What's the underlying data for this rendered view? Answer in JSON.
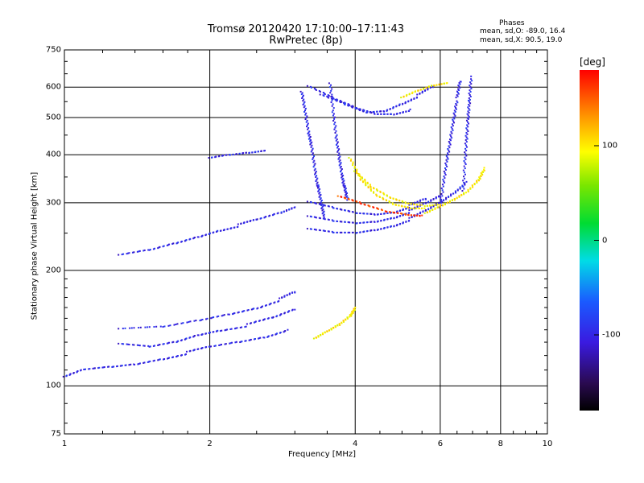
{
  "title": "Tromsø 20120420 17:10:00–17:11:43",
  "subtitle": "RwPretec (8p)",
  "stats": {
    "heading": "Phases",
    "o_mode": "mean, sd,O: -89.0, 16.4",
    "x_mode": "mean, sd,X:  90.5, 19.0"
  },
  "colorbar": {
    "unit": "[deg]",
    "tick_labels": [
      "100",
      "0",
      "-100"
    ],
    "tick_values": [
      100,
      0,
      -100
    ],
    "range": [
      -180,
      180
    ]
  },
  "chart_data": {
    "type": "scatter",
    "xlabel": "Frequency [MHz]",
    "ylabel": "Stationary phase Virtual Height [km]",
    "xscale": "log",
    "yscale": "log",
    "xlim": [
      1,
      10
    ],
    "ylim": [
      75,
      750
    ],
    "grid": true,
    "x_ticks": [
      1,
      2,
      4,
      6,
      8,
      10
    ],
    "x_tick_labels": [
      "1",
      "2",
      "4",
      "6",
      "8",
      "10"
    ],
    "y_ticks": [
      75,
      100,
      200,
      300,
      400,
      500,
      600,
      750
    ],
    "y_tick_labels": [
      "75",
      "100",
      "200",
      "300",
      "400",
      "500",
      "600",
      "750"
    ],
    "traces": [
      {
        "phase": -100,
        "points": [
          [
            1.0,
            105
          ],
          [
            1.1,
            110
          ],
          [
            1.25,
            112
          ],
          [
            1.4,
            114
          ],
          [
            1.6,
            118
          ],
          [
            1.8,
            122
          ],
          [
            2.0,
            126
          ],
          [
            2.3,
            130
          ],
          [
            2.6,
            134
          ],
          [
            2.9,
            140
          ]
        ]
      },
      {
        "phase": -100,
        "points": [
          [
            1.3,
            128
          ],
          [
            1.5,
            126
          ],
          [
            1.7,
            130
          ],
          [
            1.9,
            136
          ],
          [
            2.1,
            140
          ],
          [
            2.4,
            144
          ],
          [
            2.7,
            150
          ],
          [
            3.0,
            158
          ]
        ]
      },
      {
        "phase": -100,
        "points": [
          [
            1.3,
            140
          ],
          [
            1.6,
            142
          ],
          [
            1.9,
            148
          ],
          [
            2.2,
            154
          ],
          [
            2.5,
            160
          ],
          [
            2.8,
            168
          ],
          [
            3.0,
            175
          ]
        ]
      },
      {
        "phase": -100,
        "points": [
          [
            1.3,
            218
          ],
          [
            1.5,
            225
          ],
          [
            1.7,
            235
          ],
          [
            1.9,
            245
          ],
          [
            2.1,
            255
          ],
          [
            2.3,
            262
          ],
          [
            2.5,
            270
          ],
          [
            2.8,
            282
          ],
          [
            3.0,
            292
          ]
        ]
      },
      {
        "phase": -100,
        "points": [
          [
            2.0,
            390
          ],
          [
            2.2,
            398
          ],
          [
            2.4,
            404
          ],
          [
            2.6,
            410
          ]
        ]
      },
      {
        "phase": -100,
        "points": [
          [
            3.2,
            255
          ],
          [
            3.6,
            250
          ],
          [
            4.0,
            250
          ],
          [
            4.4,
            255
          ],
          [
            4.8,
            262
          ],
          [
            5.2,
            272
          ],
          [
            5.6,
            285
          ],
          [
            6.0,
            300
          ],
          [
            6.4,
            318
          ],
          [
            6.8,
            340
          ]
        ]
      },
      {
        "phase": -100,
        "points": [
          [
            3.2,
            275
          ],
          [
            3.6,
            268
          ],
          [
            4.0,
            265
          ],
          [
            4.4,
            268
          ],
          [
            4.8,
            275
          ],
          [
            5.2,
            285
          ],
          [
            5.6,
            298
          ],
          [
            6.0,
            312
          ]
        ]
      },
      {
        "phase": -100,
        "points": [
          [
            3.2,
            300
          ],
          [
            3.6,
            290
          ],
          [
            4.0,
            282
          ],
          [
            4.4,
            280
          ],
          [
            4.8,
            284
          ],
          [
            5.2,
            294
          ],
          [
            5.6,
            306
          ]
        ]
      },
      {
        "phase": -100,
        "points": [
          [
            3.4,
            570
          ],
          [
            3.8,
            540
          ],
          [
            4.2,
            515
          ],
          [
            4.6,
            520
          ],
          [
            5.0,
            545
          ],
          [
            5.4,
            570
          ],
          [
            5.8,
            600
          ]
        ]
      },
      {
        "phase": -100,
        "points": [
          [
            3.2,
            600
          ],
          [
            3.6,
            560
          ],
          [
            4.0,
            530
          ],
          [
            4.4,
            512
          ],
          [
            4.8,
            512
          ],
          [
            5.2,
            525
          ]
        ]
      },
      {
        "phase": -100,
        "points": [
          [
            3.1,
            580
          ],
          [
            3.15,
            520
          ],
          [
            3.2,
            460
          ],
          [
            3.25,
            420
          ],
          [
            3.3,
            370
          ],
          [
            3.35,
            330
          ],
          [
            3.4,
            300
          ],
          [
            3.45,
            275
          ]
        ]
      },
      {
        "phase": -100,
        "points": [
          [
            3.55,
            610
          ],
          [
            3.6,
            520
          ],
          [
            3.65,
            450
          ],
          [
            3.7,
            400
          ],
          [
            3.75,
            360
          ],
          [
            3.8,
            330
          ],
          [
            3.85,
            305
          ]
        ]
      },
      {
        "phase": -100,
        "points": [
          [
            6.0,
            290
          ],
          [
            6.1,
            340
          ],
          [
            6.2,
            390
          ],
          [
            6.3,
            440
          ],
          [
            6.4,
            500
          ],
          [
            6.5,
            560
          ],
          [
            6.6,
            620
          ]
        ]
      },
      {
        "phase": -100,
        "points": [
          [
            6.7,
            320
          ],
          [
            6.75,
            380
          ],
          [
            6.8,
            440
          ],
          [
            6.85,
            500
          ],
          [
            6.9,
            560
          ],
          [
            6.95,
            640
          ]
        ]
      },
      {
        "phase": 100,
        "points": [
          [
            3.3,
            132
          ],
          [
            3.5,
            138
          ],
          [
            3.7,
            144
          ],
          [
            3.9,
            152
          ],
          [
            4.0,
            160
          ]
        ]
      },
      {
        "phase": 100,
        "points": [
          [
            3.9,
            390
          ],
          [
            4.1,
            345
          ],
          [
            4.4,
            315
          ],
          [
            4.8,
            298
          ],
          [
            5.2,
            292
          ],
          [
            5.6,
            292
          ],
          [
            6.0,
            295
          ]
        ]
      },
      {
        "phase": 100,
        "points": [
          [
            4.0,
            360
          ],
          [
            4.3,
            330
          ],
          [
            4.7,
            310
          ],
          [
            5.1,
            300
          ],
          [
            5.5,
            296
          ]
        ]
      },
      {
        "phase": 100,
        "points": [
          [
            5.6,
            280
          ],
          [
            6.0,
            292
          ],
          [
            6.4,
            305
          ],
          [
            6.8,
            320
          ],
          [
            7.2,
            345
          ],
          [
            7.4,
            370
          ]
        ]
      },
      {
        "phase": 100,
        "points": [
          [
            5.0,
            560
          ],
          [
            5.4,
            585
          ],
          [
            5.8,
            605
          ],
          [
            6.2,
            615
          ]
        ]
      },
      {
        "phase": 160,
        "points": [
          [
            3.7,
            310
          ],
          [
            4.1,
            298
          ],
          [
            4.6,
            285
          ],
          [
            5.1,
            280
          ],
          [
            5.5,
            278
          ]
        ]
      }
    ]
  }
}
